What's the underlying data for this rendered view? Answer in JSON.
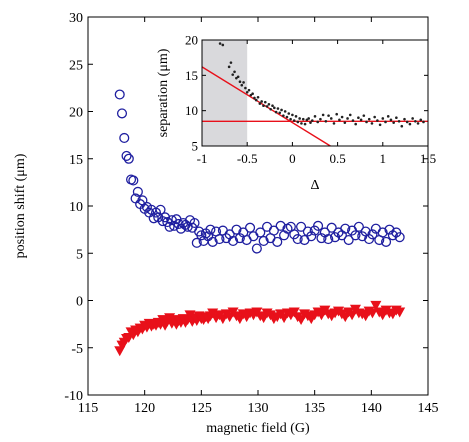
{
  "chart_data": [
    {
      "type": "scatter",
      "title": "",
      "xlabel": "magnetic field (G)",
      "ylabel": "position shift (μm)",
      "xlim": [
        115,
        145
      ],
      "ylim": [
        -10,
        30
      ],
      "xticks": [
        "115",
        "120",
        "125",
        "130",
        "135",
        "140",
        "145"
      ],
      "yticks": [
        "-10",
        "-5",
        "0",
        "5",
        "10",
        "15",
        "20",
        "25",
        "30"
      ],
      "grid": false,
      "colors": {
        "circles": "#1f1fa0",
        "triangles": "#e8101a"
      },
      "series": [
        {
          "marker": "circle",
          "x": [
            117.8,
            118.0,
            118.2,
            118.4,
            118.6,
            118.8,
            119.0,
            119.2,
            119.4,
            119.6,
            119.8,
            120.0,
            120.2,
            120.4,
            120.6,
            120.8,
            121.0,
            121.2,
            121.4,
            121.6,
            121.8,
            122.0,
            122.2,
            122.4,
            122.6,
            122.8,
            123.0,
            123.2,
            123.4,
            123.6,
            123.8,
            124.0,
            124.2,
            124.4,
            124.6,
            124.8,
            125.0,
            125.2,
            125.4,
            125.6,
            125.8,
            126.0,
            126.3,
            126.6,
            126.9,
            127.2,
            127.5,
            127.8,
            128.1,
            128.4,
            128.7,
            129.0,
            129.3,
            129.6,
            129.9,
            130.2,
            130.5,
            130.8,
            131.1,
            131.4,
            131.7,
            132.0,
            132.3,
            132.6,
            132.9,
            133.2,
            133.5,
            133.8,
            134.1,
            134.4,
            134.7,
            135.0,
            135.3,
            135.6,
            135.9,
            136.2,
            136.5,
            136.8,
            137.1,
            137.4,
            137.7,
            138.0,
            138.3,
            138.6,
            138.9,
            139.2,
            139.5,
            139.8,
            140.1,
            140.4,
            140.7,
            141.0,
            141.3,
            141.6,
            141.9,
            142.2,
            142.5
          ],
          "y": [
            21.8,
            19.8,
            17.2,
            15.3,
            15.0,
            12.8,
            12.7,
            10.8,
            11.5,
            10.2,
            10.6,
            9.7,
            9.9,
            9.3,
            9.6,
            8.7,
            9.3,
            8.8,
            9.6,
            8.4,
            8.8,
            8.3,
            7.8,
            8.5,
            7.9,
            8.6,
            8.1,
            7.6,
            8.2,
            8.0,
            7.8,
            8.5,
            7.7,
            8.2,
            6.1,
            7.3,
            6.9,
            6.3,
            7.1,
            6.8,
            7.5,
            6.2,
            7.3,
            6.5,
            7.4,
            6.6,
            7.0,
            6.3,
            7.5,
            6.6,
            7.2,
            6.4,
            7.7,
            6.8,
            5.5,
            7.2,
            6.3,
            7.8,
            6.6,
            7.4,
            6.2,
            7.9,
            6.9,
            7.6,
            7.8,
            7.0,
            6.5,
            7.8,
            6.4,
            7.3,
            6.8,
            7.4,
            7.9,
            6.6,
            7.2,
            6.5,
            7.7,
            6.7,
            7.2,
            6.9,
            7.6,
            6.4,
            7.4,
            6.9,
            7.8,
            6.8,
            7.3,
            6.5,
            7.0,
            7.6,
            6.4,
            7.2,
            6.2,
            7.5,
            6.9,
            7.2,
            6.7
          ]
        },
        {
          "marker": "triangle-down",
          "x": [
            117.8,
            118.0,
            118.2,
            118.4,
            118.6,
            118.8,
            119.0,
            119.2,
            119.4,
            119.6,
            119.8,
            120.0,
            120.2,
            120.4,
            120.6,
            120.8,
            121.0,
            121.2,
            121.4,
            121.6,
            121.8,
            122.0,
            122.2,
            122.4,
            122.6,
            122.8,
            123.0,
            123.2,
            123.4,
            123.6,
            123.8,
            124.0,
            124.2,
            124.4,
            124.6,
            124.8,
            125.0,
            125.2,
            125.4,
            125.6,
            125.8,
            126.0,
            126.3,
            126.6,
            126.9,
            127.2,
            127.5,
            127.8,
            128.1,
            128.4,
            128.7,
            129.0,
            129.3,
            129.6,
            129.9,
            130.2,
            130.5,
            130.8,
            131.1,
            131.4,
            131.7,
            132.0,
            132.3,
            132.6,
            132.9,
            133.2,
            133.5,
            133.8,
            134.1,
            134.4,
            134.7,
            135.0,
            135.3,
            135.6,
            135.9,
            136.2,
            136.5,
            136.8,
            137.1,
            137.4,
            137.7,
            138.0,
            138.3,
            138.6,
            138.9,
            139.2,
            139.5,
            139.8,
            140.1,
            140.4,
            140.7,
            141.0,
            141.3,
            141.6,
            141.9,
            142.2,
            142.5
          ],
          "y": [
            -5.3,
            -4.7,
            -4.4,
            -4.0,
            -3.9,
            -3.3,
            -3.6,
            -3.1,
            -3.3,
            -2.9,
            -3.0,
            -2.6,
            -2.8,
            -2.4,
            -2.7,
            -2.5,
            -2.6,
            -2.3,
            -2.5,
            -2.0,
            -2.6,
            -2.2,
            -1.8,
            -2.4,
            -2.0,
            -2.5,
            -2.1,
            -2.3,
            -1.9,
            -2.3,
            -2.0,
            -1.5,
            -2.2,
            -1.8,
            -2.1,
            -1.6,
            -1.9,
            -2.0,
            -1.7,
            -1.9,
            -1.6,
            -1.3,
            -1.8,
            -1.5,
            -1.9,
            -1.4,
            -1.7,
            -1.2,
            -1.6,
            -1.9,
            -1.4,
            -1.7,
            -1.3,
            -1.5,
            -1.2,
            -1.6,
            -1.8,
            -1.3,
            -1.5,
            -1.9,
            -1.7,
            -1.4,
            -1.8,
            -1.3,
            -1.5,
            -1.2,
            -1.7,
            -2.0,
            -1.4,
            -1.6,
            -1.9,
            -1.5,
            -1.2,
            -1.5,
            -1.0,
            -1.4,
            -1.6,
            -1.3,
            -1.1,
            -1.4,
            -1.7,
            -1.2,
            -1.5,
            -0.9,
            -1.3,
            -1.4,
            -1.6,
            -1.1,
            -1.3,
            -0.5,
            -1.2,
            -1.5,
            -1.0,
            -1.3,
            -1.4,
            -1.0,
            -1.2
          ]
        }
      ]
    },
    {
      "type": "scatter",
      "title": "",
      "xlabel": "Δ",
      "ylabel": "separation (μm)",
      "xlim": [
        -1,
        1.5
      ],
      "ylim": [
        5,
        20
      ],
      "xticks": [
        "-1",
        "-0.5",
        "0",
        "0.5",
        "1",
        "1.5"
      ],
      "yticks": [
        "5",
        "10",
        "15",
        "20"
      ],
      "shaded_region": [
        -1,
        -0.5
      ],
      "colors": {
        "points": "#222222",
        "lines": "#e8101a",
        "shade": "#d9d9dc"
      },
      "fit_lines": [
        {
          "x": [
            -1,
            0.42
          ],
          "y": [
            16.2,
            5
          ]
        },
        {
          "x": [
            -1,
            1.5
          ],
          "y": [
            8.5,
            8.5
          ]
        }
      ],
      "points": {
        "x": [
          -0.8,
          -0.77,
          -0.7,
          -0.68,
          -0.66,
          -0.64,
          -0.62,
          -0.6,
          -0.58,
          -0.56,
          -0.54,
          -0.52,
          -0.5,
          -0.48,
          -0.46,
          -0.44,
          -0.42,
          -0.4,
          -0.38,
          -0.36,
          -0.34,
          -0.32,
          -0.3,
          -0.28,
          -0.26,
          -0.24,
          -0.22,
          -0.2,
          -0.18,
          -0.16,
          -0.14,
          -0.12,
          -0.1,
          -0.08,
          -0.06,
          -0.04,
          -0.02,
          0.0,
          0.02,
          0.04,
          0.06,
          0.08,
          0.1,
          0.12,
          0.14,
          0.16,
          0.18,
          0.2,
          0.22,
          0.25,
          0.28,
          0.31,
          0.34,
          0.37,
          0.4,
          0.43,
          0.46,
          0.49,
          0.52,
          0.55,
          0.58,
          0.61,
          0.64,
          0.67,
          0.7,
          0.73,
          0.76,
          0.79,
          0.82,
          0.85,
          0.88,
          0.91,
          0.94,
          0.97,
          1.0,
          1.03,
          1.06,
          1.09,
          1.12,
          1.15,
          1.18,
          1.21,
          1.24,
          1.27,
          1.3,
          1.33,
          1.36,
          1.39,
          1.42,
          1.45
        ],
        "y": [
          19.5,
          19.3,
          16.2,
          16.8,
          15.1,
          15.5,
          14.6,
          14.8,
          14.1,
          13.6,
          14.0,
          13.2,
          12.6,
          12.9,
          12.2,
          12.4,
          11.8,
          11.5,
          11.9,
          11.0,
          11.3,
          10.7,
          11.2,
          10.6,
          10.9,
          10.2,
          10.7,
          10.4,
          9.8,
          10.3,
          9.7,
          10.1,
          9.3,
          9.9,
          9.1,
          9.6,
          8.8,
          9.4,
          8.6,
          9.2,
          8.4,
          8.9,
          8.2,
          8.8,
          8.1,
          8.7,
          8.9,
          8.3,
          8.6,
          9.2,
          8.4,
          8.8,
          9.4,
          8.5,
          9.3,
          8.9,
          8.2,
          9.5,
          8.7,
          9.1,
          8.3,
          8.9,
          9.4,
          8.6,
          8.1,
          9.0,
          8.7,
          9.3,
          8.4,
          8.8,
          8.2,
          9.1,
          8.6,
          8.0,
          8.9,
          8.4,
          9.2,
          8.7,
          8.3,
          9.0,
          8.5,
          7.8,
          8.8,
          8.4,
          8.1,
          8.9,
          8.5,
          8.2,
          8.7,
          8.4
        ]
      }
    }
  ]
}
